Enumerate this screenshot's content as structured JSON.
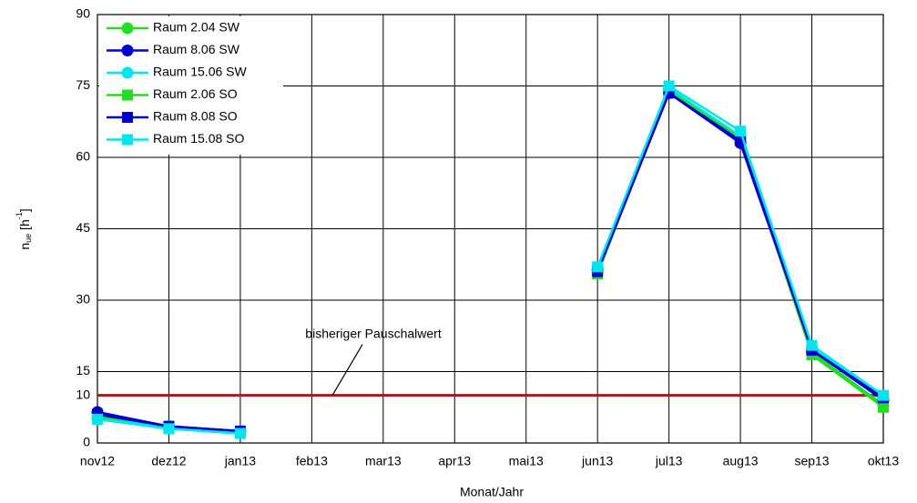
{
  "chart_data": {
    "type": "line",
    "x_label": "Monat/Jahr",
    "y_label": [
      "n",
      "ue",
      " [h",
      "-1",
      "]"
    ],
    "categories": [
      "nov12",
      "dez12",
      "jan13",
      "feb13",
      "mar13",
      "apr13",
      "mai13",
      "jun13",
      "jul13",
      "aug13",
      "sep13",
      "okt13"
    ],
    "ylim": [
      0,
      90
    ],
    "yticks": [
      0,
      10,
      15,
      30,
      45,
      60,
      75,
      90
    ],
    "grid": true,
    "legend": "upper left",
    "reference_line": {
      "value": 10,
      "label": "bisheriger Pauschalwert",
      "color": "#dd0000"
    },
    "series": [
      {
        "name": "Raum 2.04 SW",
        "color": "#22dd22",
        "marker": "circle",
        "values": [
          5.5,
          3.5,
          2.5,
          null,
          null,
          null,
          null,
          36,
          74,
          63.5,
          19,
          8
        ]
      },
      {
        "name": "Raum 8.06 SW",
        "color": "#0000cc",
        "marker": "circle",
        "values": [
          6.5,
          3.5,
          2.5,
          null,
          null,
          null,
          null,
          36.5,
          73.5,
          63,
          19.5,
          9
        ]
      },
      {
        "name": "Raum 15.06 SW",
        "color": "#00e5ee",
        "marker": "circle",
        "values": [
          5,
          3.5,
          2.5,
          null,
          null,
          null,
          null,
          37,
          74.5,
          64.5,
          20,
          9.5
        ]
      },
      {
        "name": "Raum 2.06 SO",
        "color": "#22dd22",
        "marker": "square",
        "values": [
          5,
          3,
          2,
          null,
          null,
          null,
          null,
          35.5,
          74,
          64,
          18.5,
          7.5
        ]
      },
      {
        "name": "Raum 8.08 SO",
        "color": "#0000cc",
        "marker": "square",
        "values": [
          6,
          3.5,
          2.5,
          null,
          null,
          null,
          null,
          36,
          73.5,
          63.5,
          19.5,
          9.5
        ]
      },
      {
        "name": "Raum 15.08 SO",
        "color": "#00e5ee",
        "marker": "square",
        "values": [
          5,
          3,
          2,
          null,
          null,
          null,
          null,
          37,
          75,
          65.5,
          20.5,
          10
        ]
      }
    ]
  }
}
